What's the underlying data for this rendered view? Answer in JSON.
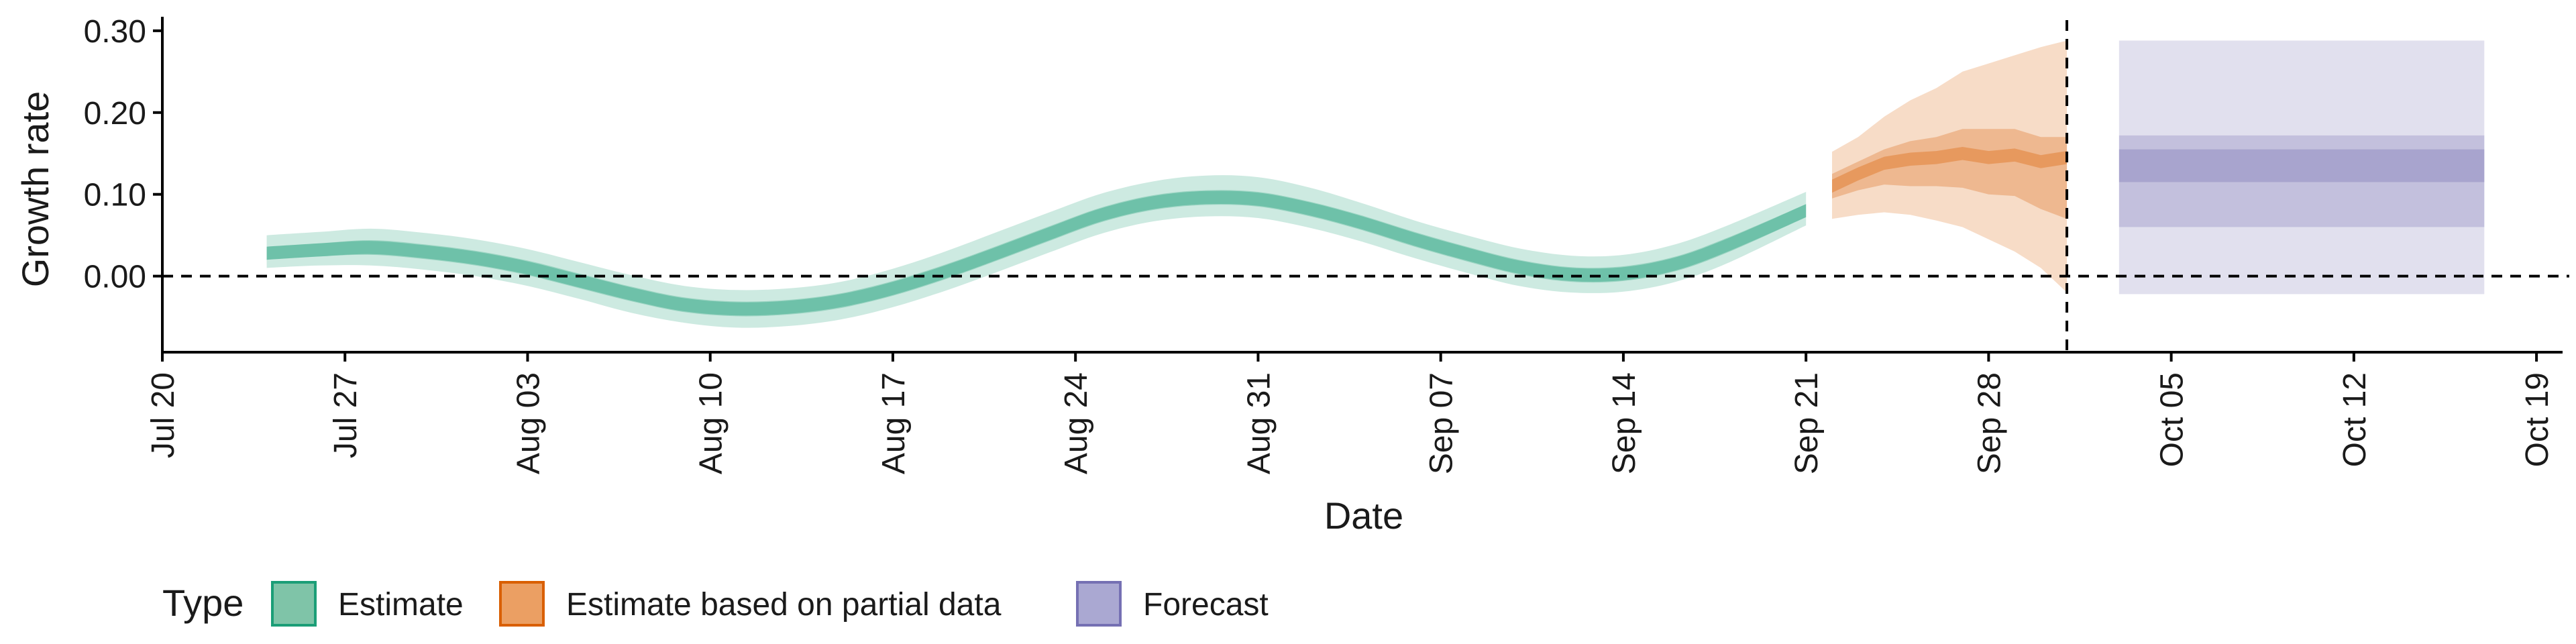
{
  "chart_data": {
    "type": "area",
    "title": "",
    "xlabel": "Date",
    "ylabel": "Growth rate",
    "x_ticks": [
      "Jul 20",
      "Jul 27",
      "Aug 03",
      "Aug 10",
      "Aug 17",
      "Aug 24",
      "Aug 31",
      "Sep 07",
      "Sep 14",
      "Sep 21",
      "Sep 28",
      "Oct 05",
      "Oct 12",
      "Oct 19"
    ],
    "y_ticks": [
      "0.00",
      "0.10",
      "0.20",
      "0.30"
    ],
    "ylim": [
      -0.093,
      0.313
    ],
    "xlim": [
      "2020-07-20",
      "2020-10-20"
    ],
    "reference_lines": {
      "horizontal_y": 0.0,
      "vertical_date": "2020-10-01"
    },
    "legend": {
      "title": "Type",
      "position": "bottom-left",
      "entries": [
        "Estimate",
        "Estimate based on partial data",
        "Forecast"
      ]
    },
    "colors": {
      "Estimate": "#1b9e77",
      "Estimate based on partial data": "#d95f02",
      "Forecast": "#7570b3",
      "legend_Estimate": "#7fc4a8",
      "legend_Estimate based on partial data": "#eb9f63",
      "legend_Forecast": "#aaa8d2"
    },
    "series": [
      {
        "name": "Estimate",
        "dates": [
          "2020-07-24",
          "2020-07-26",
          "2020-07-28",
          "2020-07-30",
          "2020-08-01",
          "2020-08-03",
          "2020-08-05",
          "2020-08-07",
          "2020-08-09",
          "2020-08-11",
          "2020-08-13",
          "2020-08-15",
          "2020-08-17",
          "2020-08-19",
          "2020-08-21",
          "2020-08-23",
          "2020-08-25",
          "2020-08-27",
          "2020-08-29",
          "2020-08-31",
          "2020-09-02",
          "2020-09-04",
          "2020-09-06",
          "2020-09-08",
          "2020-09-10",
          "2020-09-12",
          "2020-09-14",
          "2020-09-16",
          "2020-09-18",
          "2020-09-21"
        ],
        "median": [
          0.028,
          0.032,
          0.035,
          0.03,
          0.022,
          0.01,
          -0.006,
          -0.022,
          -0.035,
          -0.04,
          -0.038,
          -0.03,
          -0.015,
          0.005,
          0.028,
          0.052,
          0.075,
          0.09,
          0.096,
          0.094,
          0.082,
          0.065,
          0.045,
          0.027,
          0.011,
          0.002,
          0.003,
          0.015,
          0.038,
          0.08
        ],
        "low_50": [
          0.02,
          0.024,
          0.026,
          0.021,
          0.013,
          0.001,
          -0.015,
          -0.031,
          -0.044,
          -0.049,
          -0.047,
          -0.039,
          -0.024,
          -0.004,
          0.019,
          0.043,
          0.066,
          0.081,
          0.087,
          0.085,
          0.073,
          0.056,
          0.036,
          0.018,
          0.002,
          -0.007,
          -0.006,
          0.006,
          0.029,
          0.072
        ],
        "high_50": [
          0.036,
          0.04,
          0.044,
          0.039,
          0.031,
          0.019,
          0.003,
          -0.013,
          -0.026,
          -0.031,
          -0.029,
          -0.021,
          -0.006,
          0.014,
          0.037,
          0.061,
          0.084,
          0.099,
          0.105,
          0.103,
          0.091,
          0.074,
          0.054,
          0.036,
          0.02,
          0.011,
          0.012,
          0.024,
          0.047,
          0.088
        ],
        "low_90": [
          0.01,
          0.013,
          0.013,
          0.008,
          0.0,
          -0.012,
          -0.028,
          -0.045,
          -0.057,
          -0.063,
          -0.061,
          -0.053,
          -0.038,
          -0.018,
          0.005,
          0.029,
          0.052,
          0.067,
          0.073,
          0.071,
          0.059,
          0.042,
          0.022,
          0.004,
          -0.012,
          -0.02,
          -0.019,
          -0.007,
          0.016,
          0.062
        ],
        "high_90": [
          0.05,
          0.054,
          0.058,
          0.053,
          0.045,
          0.033,
          0.017,
          0.001,
          -0.012,
          -0.017,
          -0.015,
          -0.007,
          0.009,
          0.03,
          0.054,
          0.078,
          0.101,
          0.116,
          0.123,
          0.121,
          0.108,
          0.089,
          0.068,
          0.05,
          0.034,
          0.025,
          0.026,
          0.039,
          0.062,
          0.103
        ]
      },
      {
        "name": "Estimate based on partial data",
        "dates": [
          "2020-09-22",
          "2020-09-23",
          "2020-09-24",
          "2020-09-25",
          "2020-09-26",
          "2020-09-27",
          "2020-09-28",
          "2020-09-29",
          "2020-09-30",
          "2020-10-01"
        ],
        "median": [
          0.11,
          0.125,
          0.138,
          0.143,
          0.145,
          0.15,
          0.145,
          0.148,
          0.14,
          0.145
        ],
        "low_50": [
          0.095,
          0.105,
          0.112,
          0.11,
          0.11,
          0.108,
          0.1,
          0.098,
          0.082,
          0.07
        ],
        "high_50": [
          0.125,
          0.14,
          0.155,
          0.165,
          0.17,
          0.18,
          0.18,
          0.18,
          0.17,
          0.17
        ],
        "low_90": [
          0.07,
          0.075,
          0.078,
          0.075,
          0.068,
          0.06,
          0.045,
          0.03,
          0.01,
          -0.02
        ],
        "high_90": [
          0.152,
          0.17,
          0.195,
          0.215,
          0.23,
          0.25,
          0.26,
          0.27,
          0.28,
          0.288
        ]
      },
      {
        "name": "Forecast",
        "dates": [
          "2020-10-03",
          "2020-10-17"
        ],
        "low_90": [
          -0.022,
          -0.022
        ],
        "high_90": [
          0.288,
          0.288
        ],
        "low_50": [
          0.06,
          0.06
        ],
        "high_50": [
          0.172,
          0.172
        ],
        "low_20": [
          0.115,
          0.115
        ],
        "high_20": [
          0.155,
          0.155
        ]
      }
    ]
  }
}
